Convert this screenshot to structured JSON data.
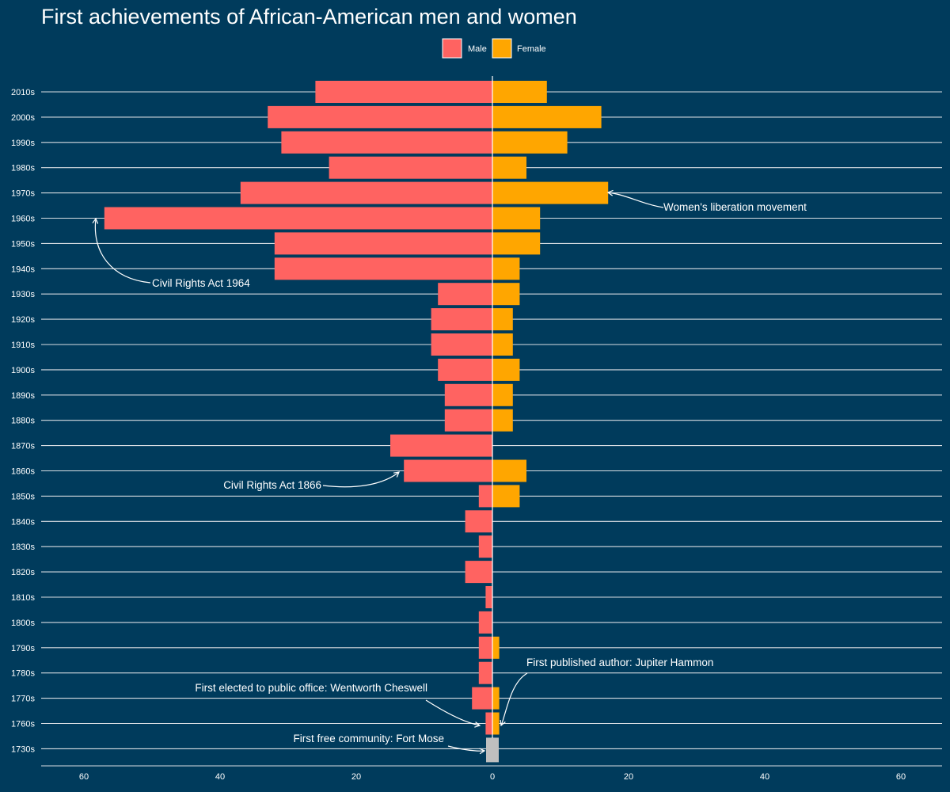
{
  "chart_data": {
    "type": "bar",
    "title": "First achievements of African-American men and women",
    "xlabel": "",
    "ylabel": "",
    "xlim": [
      -60,
      60
    ],
    "x_ticks": [
      -60,
      -40,
      -20,
      0,
      20,
      40,
      60
    ],
    "x_tick_labels": [
      "60",
      "40",
      "20",
      "0",
      "20",
      "40",
      "60"
    ],
    "grid": "horizontal",
    "legend_position": "top",
    "categories": [
      "2010s",
      "2000s",
      "1990s",
      "1980s",
      "1970s",
      "1960s",
      "1950s",
      "1940s",
      "1930s",
      "1920s",
      "1910s",
      "1900s",
      "1890s",
      "1880s",
      "1870s",
      "1860s",
      "1850s",
      "1840s",
      "1830s",
      "1820s",
      "1810s",
      "1800s",
      "1790s",
      "1780s",
      "1770s",
      "1760s",
      "1730s"
    ],
    "series": [
      {
        "name": "Male",
        "color": "#ff6361",
        "values": [
          26,
          33,
          31,
          24,
          37,
          57,
          32,
          32,
          8,
          9,
          9,
          8,
          7,
          7,
          15,
          13,
          2,
          4,
          2,
          4,
          1,
          2,
          2,
          2,
          3,
          1,
          1
        ]
      },
      {
        "name": "Female",
        "color": "#ffa600",
        "values": [
          8,
          16,
          11,
          5,
          17,
          7,
          7,
          4,
          4,
          3,
          3,
          4,
          3,
          3,
          0,
          5,
          4,
          0,
          0,
          0,
          0,
          0,
          1,
          0,
          1,
          1,
          0
        ]
      }
    ],
    "highlight": {
      "category": "1730s",
      "color": "#bfbfbf",
      "value": 1
    },
    "annotations": [
      {
        "text": "Women's liberation movement",
        "category": "1970s"
      },
      {
        "text": "Civil Rights Act 1964",
        "category": "1960s"
      },
      {
        "text": "Civil Rights Act 1866",
        "category": "1860s"
      },
      {
        "text": "First published author: Jupiter Hammon",
        "category": "1760s"
      },
      {
        "text": "First elected to public office: Wentworth Cheswell",
        "category": "1760s"
      },
      {
        "text": "First free community: Fort Mose",
        "category": "1730s"
      }
    ]
  }
}
